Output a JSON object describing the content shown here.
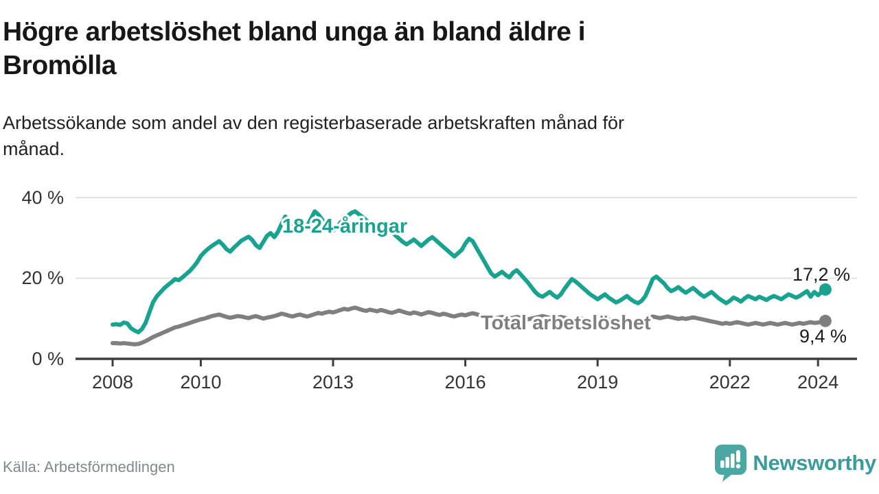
{
  "header": {
    "title_lines": [
      "Högre arbetslöshet bland unga än bland äldre i",
      "Bromölla"
    ],
    "subtitle_lines": [
      "Arbetssökande som andel av den registerbaserade arbetskraften månad för",
      "månad."
    ]
  },
  "footer": {
    "source": "Källa: Arbetsförmedlingen",
    "brand": "Newsworthy",
    "brand_text_color": "#3a9b9b",
    "brand_icon_color": "#4aa7a2"
  },
  "chart_data": {
    "type": "line",
    "x_unit": "month",
    "x_start_year": 2008,
    "x_end_label": "2024",
    "ylim": [
      0,
      40
    ],
    "grid": "horizontal",
    "legend_position": "inline-labels",
    "y_ticks": [
      {
        "label": "40 %",
        "value": 40
      },
      {
        "label": "20 %",
        "value": 20
      },
      {
        "label": "0 %",
        "value": 0
      }
    ],
    "x_ticks": [
      {
        "label": "2008",
        "year": 2008
      },
      {
        "label": "2010",
        "year": 2010
      },
      {
        "label": "2013",
        "year": 2013
      },
      {
        "label": "2016",
        "year": 2016
      },
      {
        "label": "2019",
        "year": 2019
      },
      {
        "label": "2022",
        "year": 2022
      },
      {
        "label": "2024",
        "year": 2024
      }
    ],
    "series": [
      {
        "id": "youth",
        "label": "18-24-åringar",
        "color": "#18a390",
        "end_label": "17,2 %",
        "end_value": 17.2,
        "values": [
          8.5,
          8.6,
          8.4,
          9.0,
          8.8,
          7.6,
          7.0,
          6.6,
          7.4,
          9.0,
          11.5,
          14.0,
          15.5,
          16.5,
          17.5,
          18.3,
          19.0,
          19.8,
          19.5,
          20.2,
          21.0,
          21.8,
          22.8,
          24.0,
          25.5,
          26.5,
          27.3,
          28.0,
          28.6,
          29.2,
          28.3,
          27.2,
          26.6,
          27.6,
          28.4,
          29.3,
          29.8,
          30.3,
          29.5,
          28.2,
          27.5,
          29.0,
          30.5,
          31.2,
          30.2,
          31.5,
          33.5,
          35.3,
          34.2,
          33.3,
          34.5,
          33.6,
          32.4,
          33.0,
          34.8,
          36.6,
          35.8,
          34.6,
          33.2,
          32.2,
          31.8,
          32.6,
          33.8,
          34.8,
          35.5,
          36.2,
          36.6,
          35.9,
          35.2,
          34.4,
          33.6,
          33.0,
          33.4,
          34.0,
          33.2,
          32.2,
          31.4,
          30.6,
          29.8,
          29.0,
          28.4,
          29.0,
          29.6,
          28.8,
          28.0,
          28.8,
          29.6,
          30.2,
          29.4,
          28.6,
          27.8,
          27.0,
          26.2,
          25.4,
          26.2,
          27.0,
          28.6,
          29.8,
          29.2,
          27.6,
          26.0,
          24.4,
          22.8,
          21.2,
          20.4,
          21.0,
          21.6,
          20.8,
          20.2,
          21.4,
          22.0,
          21.0,
          20.0,
          19.0,
          17.8,
          16.6,
          15.8,
          15.4,
          16.0,
          16.6,
          15.8,
          15.2,
          16.0,
          17.4,
          18.6,
          19.8,
          19.2,
          18.4,
          17.6,
          16.8,
          16.0,
          15.4,
          14.8,
          15.4,
          16.0,
          15.2,
          14.6,
          14.0,
          14.4,
          15.0,
          15.6,
          14.8,
          14.2,
          13.8,
          14.4,
          15.6,
          17.6,
          19.8,
          20.4,
          19.6,
          18.8,
          17.6,
          16.8,
          17.2,
          17.8,
          17.0,
          16.4,
          17.0,
          17.6,
          16.8,
          16.0,
          15.4,
          16.0,
          16.6,
          15.8,
          15.0,
          14.4,
          13.8,
          14.4,
          15.2,
          14.8,
          14.2,
          15.0,
          15.6,
          15.2,
          14.8,
          15.4,
          15.0,
          14.6,
          15.2,
          15.6,
          15.2,
          14.8,
          15.4,
          16.0,
          15.6,
          15.2,
          15.6,
          16.2,
          16.8,
          15.4,
          16.6,
          15.8,
          16.6,
          17.2
        ]
      },
      {
        "id": "total",
        "label": "Total arbetslöshet",
        "color": "#7f7f7f",
        "end_label": "9,4 %",
        "end_value": 9.4,
        "values": [
          3.9,
          3.9,
          3.8,
          3.9,
          3.8,
          3.7,
          3.6,
          3.7,
          4.0,
          4.4,
          4.9,
          5.4,
          5.8,
          6.2,
          6.6,
          7.0,
          7.4,
          7.8,
          8.0,
          8.3,
          8.6,
          8.9,
          9.2,
          9.5,
          9.8,
          10.0,
          10.3,
          10.6,
          10.8,
          11.0,
          10.7,
          10.4,
          10.2,
          10.4,
          10.6,
          10.5,
          10.3,
          10.1,
          10.4,
          10.6,
          10.3,
          10.0,
          10.2,
          10.4,
          10.6,
          10.9,
          11.2,
          11.0,
          10.7,
          10.5,
          10.8,
          11.0,
          10.7,
          10.5,
          10.8,
          11.1,
          11.4,
          11.2,
          11.5,
          11.7,
          11.5,
          11.8,
          12.1,
          12.4,
          12.2,
          12.5,
          12.7,
          12.4,
          12.1,
          11.9,
          12.2,
          12.0,
          11.8,
          12.1,
          11.9,
          11.6,
          11.4,
          11.7,
          12.0,
          11.7,
          11.4,
          11.2,
          11.5,
          11.3,
          11.0,
          11.3,
          11.6,
          11.4,
          11.1,
          10.9,
          11.2,
          11.0,
          10.7,
          10.5,
          10.8,
          11.0,
          10.8,
          11.1,
          11.3,
          11.1,
          10.8,
          10.5,
          10.3,
          10.1,
          10.0,
          10.2,
          10.4,
          10.2,
          10.0,
          10.2,
          10.4,
          10.2,
          10.0,
          9.8,
          10.0,
          10.2,
          10.4,
          10.6,
          10.4,
          10.2,
          10.0,
          10.2,
          10.4,
          10.2,
          9.9,
          9.7,
          9.9,
          10.1,
          9.9,
          9.7,
          9.5,
          9.7,
          9.5,
          9.7,
          9.9,
          9.7,
          9.5,
          9.3,
          9.5,
          9.7,
          9.5,
          9.3,
          9.1,
          9.3,
          9.5,
          9.7,
          10.1,
          10.5,
          10.3,
          10.1,
          10.3,
          10.5,
          10.3,
          10.1,
          9.9,
          10.1,
          9.9,
          10.1,
          10.3,
          10.1,
          9.9,
          9.7,
          9.5,
          9.3,
          9.1,
          8.9,
          8.7,
          8.9,
          8.7,
          8.9,
          9.1,
          8.9,
          8.7,
          8.5,
          8.7,
          8.9,
          8.7,
          8.5,
          8.7,
          8.9,
          8.7,
          8.5,
          8.7,
          8.9,
          8.7,
          8.5,
          8.7,
          8.9,
          8.7,
          8.9,
          9.1,
          8.9,
          9.0,
          9.2,
          9.4
        ]
      }
    ]
  }
}
